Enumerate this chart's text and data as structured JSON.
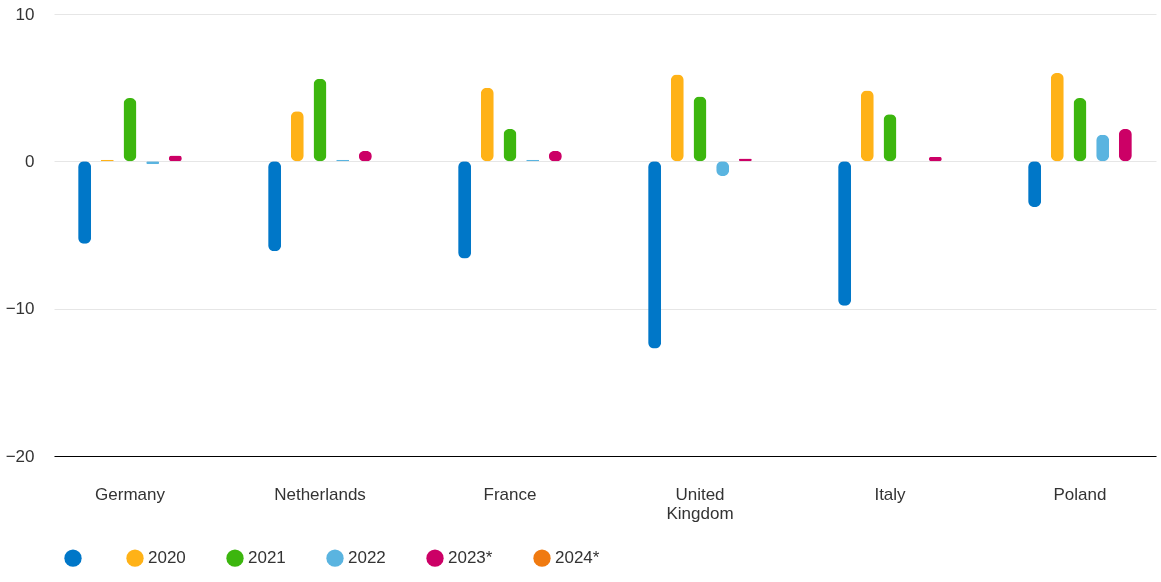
{
  "chart_data": {
    "type": "bar",
    "categories": [
      "Germany",
      "Netherlands",
      "France",
      "United Kingdom",
      "Italy",
      "Poland"
    ],
    "series": [
      {
        "color": "#0077c8",
        "values": [
          -5.6,
          -6.1,
          -6.6,
          -12.7,
          -9.8,
          -3.1
        ]
      },
      {
        "name": "2020",
        "color": "#ffb217",
        "values": [
          0.1,
          3.4,
          5.0,
          5.9,
          4.8,
          6.0
        ]
      },
      {
        "name": "2021",
        "color": "#3cb60e",
        "values": [
          4.3,
          5.6,
          2.2,
          4.4,
          3.2,
          4.3
        ]
      },
      {
        "name": "2022",
        "color": "#5ab4e0",
        "values": [
          -0.2,
          0.1,
          0.1,
          -1.0,
          0.0,
          1.8
        ]
      },
      {
        "name": "2023*",
        "color": "#cc0066",
        "values": [
          0.4,
          0.7,
          0.7,
          0.2,
          0.3,
          2.2
        ]
      },
      {
        "name": "2024*",
        "color": "#f07a10",
        "values": [
          null,
          null,
          null,
          null,
          null,
          null
        ]
      }
    ],
    "ylim": [
      -20,
      10
    ],
    "yticks": [
      -20,
      -10,
      0,
      10
    ],
    "grid": "y",
    "legend": "bottom"
  }
}
